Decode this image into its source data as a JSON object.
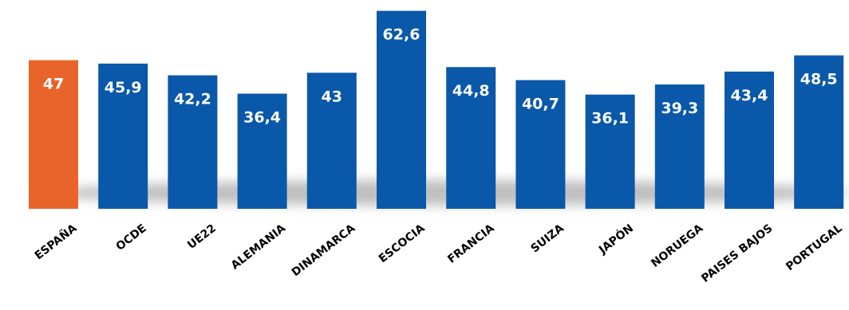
{
  "chart_data": {
    "type": "bar",
    "categories": [
      "ESPAÑA",
      "OCDE",
      "UE22",
      "ALEMANIA",
      "DINAMARCA",
      "ESCOCIA",
      "FRANCIA",
      "SUIZA",
      "JAPÓN",
      "NORUEGA",
      "PAISES BAJOS",
      "PORTUGAL"
    ],
    "values": [
      47,
      45.9,
      42.2,
      36.4,
      43,
      62.6,
      44.8,
      40.7,
      36.1,
      39.3,
      43.4,
      48.5
    ],
    "value_labels": [
      "47",
      "45,9",
      "42,2",
      "36,4",
      "43",
      "62,6",
      "44,8",
      "40,7",
      "36,1",
      "39,3",
      "43,4",
      "48,5"
    ],
    "highlight_category": "ESPAÑA",
    "colors": {
      "highlight": "#E8642A",
      "default": "#0A58A9",
      "label": "#FFFFFF",
      "axis_text": "#000000"
    },
    "title": "",
    "xlabel": "",
    "ylabel": "",
    "ylim": [
      0,
      64
    ],
    "grid": false,
    "legend": "none"
  }
}
